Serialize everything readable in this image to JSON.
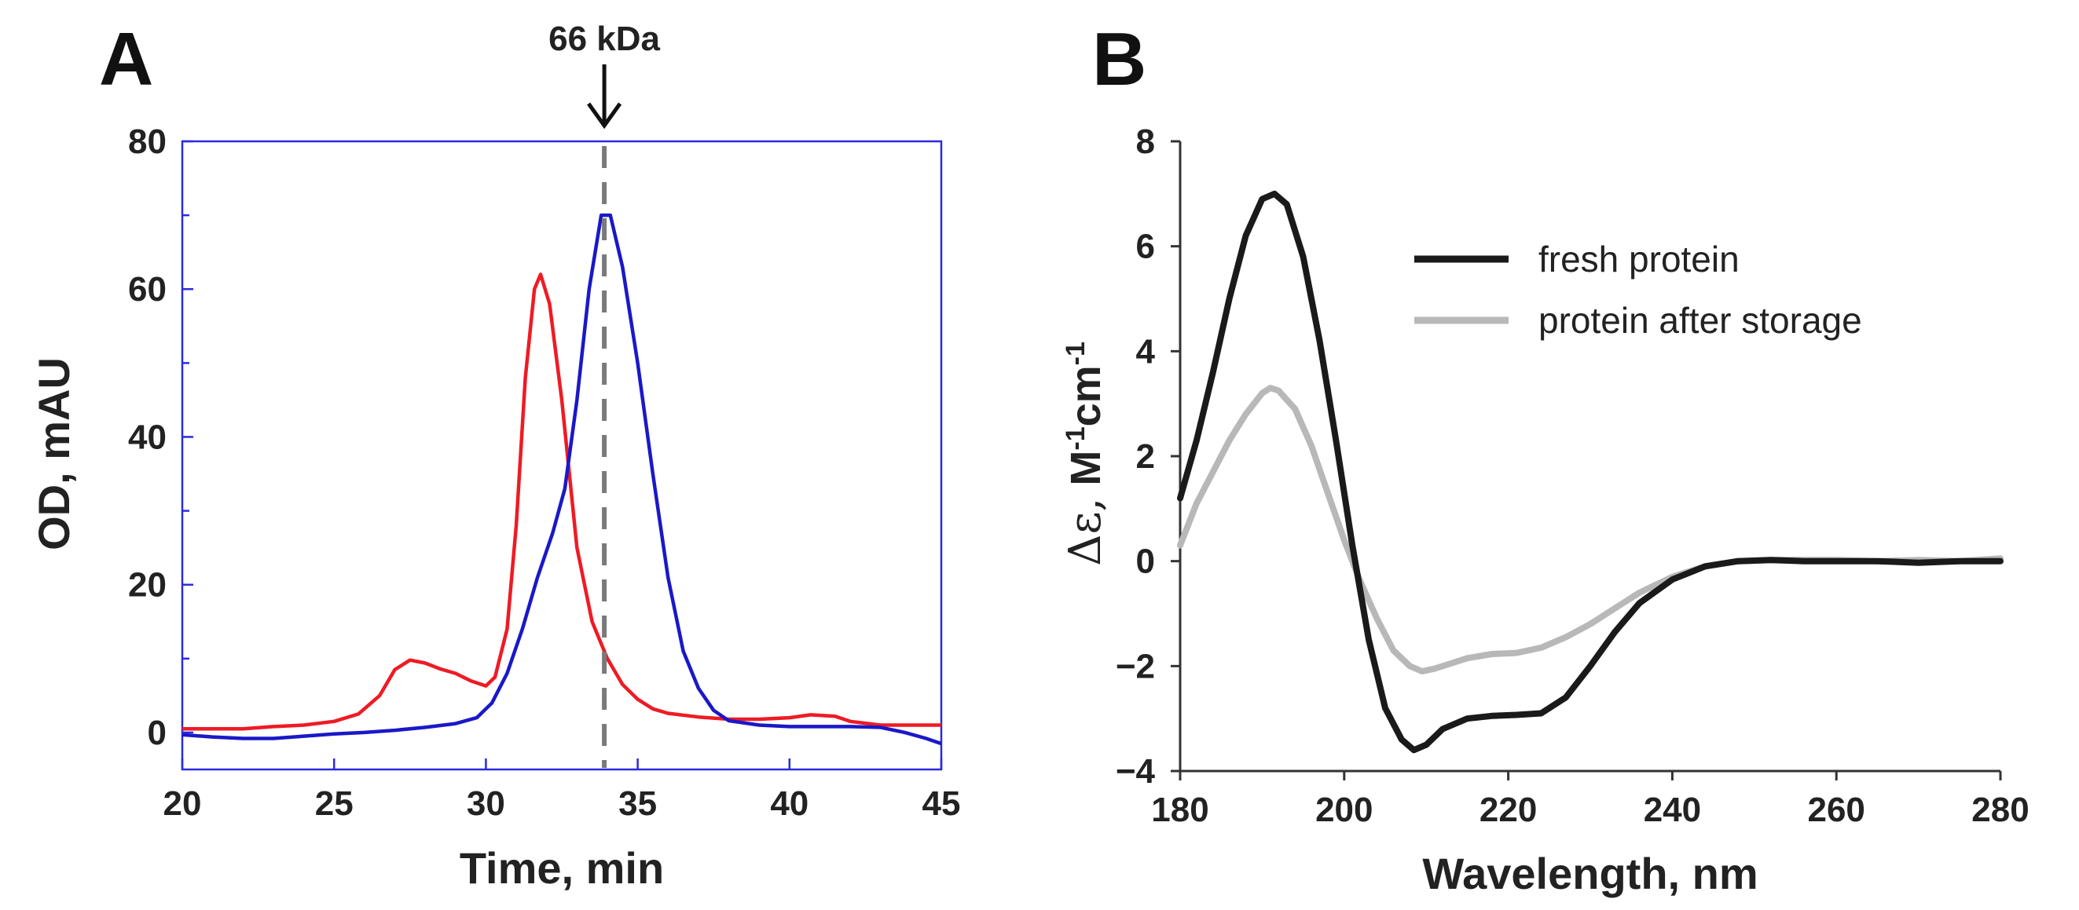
{
  "chart_data": [
    {
      "panel": "A",
      "type": "line",
      "title": "",
      "xlabel": "Time, min",
      "ylabel": "OD, mAU",
      "xlim": [
        20,
        45
      ],
      "ylim": [
        -5,
        80
      ],
      "xticks": [
        20,
        25,
        30,
        35,
        40,
        45
      ],
      "yticks": [
        0,
        20,
        40,
        60,
        80
      ],
      "frame_color": "#2a2ae0",
      "annotation": {
        "label": "66 kDa",
        "x": 33.9,
        "style": "dashed vertical line with downward arrow",
        "color": "#7a7a7a"
      },
      "series": [
        {
          "name": "red trace",
          "color": "#ee1b24",
          "points": [
            [
              20,
              0.5
            ],
            [
              22,
              0.5
            ],
            [
              23,
              0.8
            ],
            [
              24,
              1.0
            ],
            [
              25,
              1.5
            ],
            [
              25.8,
              2.5
            ],
            [
              26.5,
              5
            ],
            [
              27,
              8.5
            ],
            [
              27.5,
              9.8
            ],
            [
              28,
              9.4
            ],
            [
              28.5,
              8.6
            ],
            [
              29,
              8.0
            ],
            [
              29.5,
              7.0
            ],
            [
              30,
              6.3
            ],
            [
              30.3,
              7.5
            ],
            [
              30.7,
              14
            ],
            [
              31,
              28
            ],
            [
              31.3,
              48
            ],
            [
              31.6,
              60
            ],
            [
              31.8,
              62
            ],
            [
              32.1,
              58
            ],
            [
              32.5,
              45
            ],
            [
              33,
              25
            ],
            [
              33.5,
              15
            ],
            [
              34,
              10
            ],
            [
              34.5,
              6.5
            ],
            [
              35,
              4.5
            ],
            [
              35.5,
              3.2
            ],
            [
              36,
              2.6
            ],
            [
              37,
              2.1
            ],
            [
              38,
              1.8
            ],
            [
              39,
              1.8
            ],
            [
              40,
              2.0
            ],
            [
              40.7,
              2.4
            ],
            [
              41.5,
              2.2
            ],
            [
              42,
              1.5
            ],
            [
              43,
              1.0
            ],
            [
              45,
              1.0
            ]
          ]
        },
        {
          "name": "blue trace",
          "color": "#1a18c8",
          "points": [
            [
              20,
              -0.3
            ],
            [
              21,
              -0.6
            ],
            [
              22,
              -0.8
            ],
            [
              23,
              -0.8
            ],
            [
              24,
              -0.5
            ],
            [
              25,
              -0.2
            ],
            [
              26,
              0
            ],
            [
              27,
              0.3
            ],
            [
              28,
              0.7
            ],
            [
              29,
              1.2
            ],
            [
              29.7,
              2.0
            ],
            [
              30.2,
              4.0
            ],
            [
              30.7,
              8
            ],
            [
              31.2,
              14
            ],
            [
              31.7,
              21
            ],
            [
              32.2,
              27
            ],
            [
              32.6,
              33
            ],
            [
              33,
              45
            ],
            [
              33.4,
              60
            ],
            [
              33.8,
              70
            ],
            [
              34.1,
              70
            ],
            [
              34.5,
              63
            ],
            [
              35,
              50
            ],
            [
              35.5,
              35
            ],
            [
              36,
              21
            ],
            [
              36.5,
              11
            ],
            [
              37,
              6
            ],
            [
              37.5,
              3
            ],
            [
              38,
              1.6
            ],
            [
              39,
              1.0
            ],
            [
              40,
              0.8
            ],
            [
              41,
              0.8
            ],
            [
              42,
              0.8
            ],
            [
              43,
              0.7
            ],
            [
              43.8,
              0
            ],
            [
              44.5,
              -0.8
            ],
            [
              45,
              -1.5
            ]
          ]
        }
      ]
    },
    {
      "panel": "B",
      "type": "line",
      "title": "",
      "xlabel": "Wavelength, nm",
      "ylabel": "Δε, M-1cm-1",
      "xlim": [
        180,
        280
      ],
      "ylim": [
        -4,
        8
      ],
      "xticks": [
        180,
        200,
        220,
        240,
        260,
        280
      ],
      "yticks": [
        -4,
        -2,
        0,
        2,
        4,
        6,
        8
      ],
      "ytick_labels": [
        "−4",
        "−2",
        "0",
        "2",
        "4",
        "6",
        "8"
      ],
      "legend_position": "top-right",
      "series": [
        {
          "name": "fresh protein",
          "color": "#1a1a1a",
          "points": [
            [
              180,
              1.2
            ],
            [
              182,
              2.3
            ],
            [
              184,
              3.6
            ],
            [
              186,
              5.0
            ],
            [
              188,
              6.2
            ],
            [
              190,
              6.9
            ],
            [
              191.5,
              7.0
            ],
            [
              193,
              6.8
            ],
            [
              195,
              5.8
            ],
            [
              197,
              4.2
            ],
            [
              199,
              2.3
            ],
            [
              201,
              0.3
            ],
            [
              203,
              -1.5
            ],
            [
              205,
              -2.8
            ],
            [
              207,
              -3.4
            ],
            [
              208.5,
              -3.6
            ],
            [
              210,
              -3.5
            ],
            [
              212,
              -3.2
            ],
            [
              215,
              -3.0
            ],
            [
              218,
              -2.95
            ],
            [
              221,
              -2.93
            ],
            [
              224,
              -2.9
            ],
            [
              227,
              -2.6
            ],
            [
              230,
              -2.0
            ],
            [
              233,
              -1.35
            ],
            [
              236,
              -0.8
            ],
            [
              240,
              -0.35
            ],
            [
              244,
              -0.1
            ],
            [
              248,
              0
            ],
            [
              252,
              0.02
            ],
            [
              256,
              0
            ],
            [
              260,
              0
            ],
            [
              265,
              0
            ],
            [
              270,
              -0.03
            ],
            [
              275,
              0
            ],
            [
              280,
              0.0
            ]
          ]
        },
        {
          "name": "protein after storage",
          "color": "#b8b8b8",
          "points": [
            [
              180,
              0.3
            ],
            [
              182,
              1.1
            ],
            [
              184,
              1.7
            ],
            [
              186,
              2.3
            ],
            [
              188,
              2.8
            ],
            [
              190,
              3.2
            ],
            [
              191,
              3.3
            ],
            [
              192,
              3.25
            ],
            [
              194,
              2.9
            ],
            [
              196,
              2.2
            ],
            [
              198,
              1.3
            ],
            [
              200,
              0.4
            ],
            [
              202,
              -0.4
            ],
            [
              204,
              -1.1
            ],
            [
              206,
              -1.7
            ],
            [
              208,
              -2.0
            ],
            [
              209.5,
              -2.1
            ],
            [
              211,
              -2.05
            ],
            [
              213,
              -1.95
            ],
            [
              215,
              -1.85
            ],
            [
              218,
              -1.77
            ],
            [
              221,
              -1.75
            ],
            [
              224,
              -1.65
            ],
            [
              227,
              -1.45
            ],
            [
              230,
              -1.2
            ],
            [
              233,
              -0.9
            ],
            [
              236,
              -0.6
            ],
            [
              240,
              -0.3
            ],
            [
              244,
              -0.1
            ],
            [
              248,
              0
            ],
            [
              252,
              0.02
            ],
            [
              256,
              0.02
            ],
            [
              260,
              0.02
            ],
            [
              265,
              0
            ],
            [
              270,
              0.02
            ],
            [
              275,
              0
            ],
            [
              280,
              0.05
            ]
          ]
        }
      ]
    }
  ]
}
